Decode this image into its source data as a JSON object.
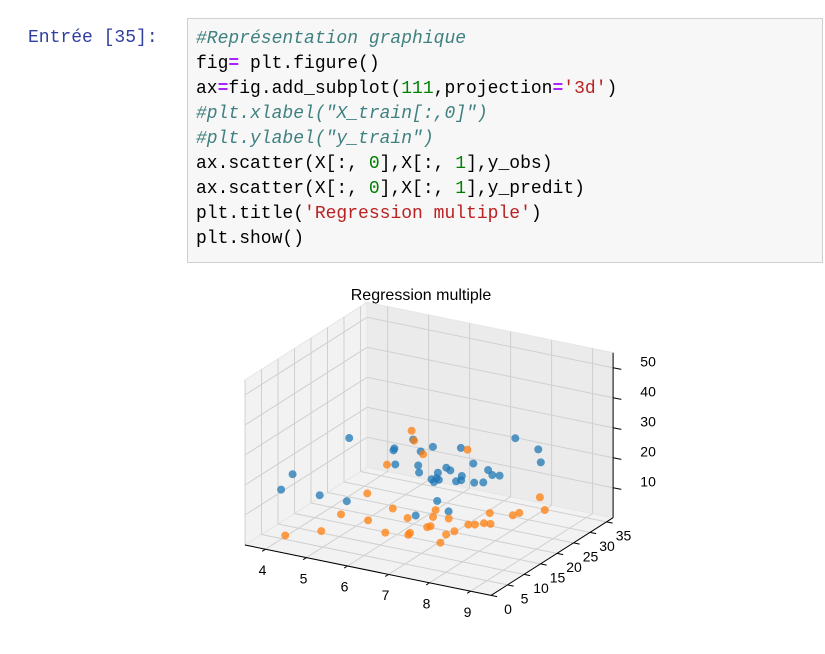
{
  "prompt": "Entrée [35]:",
  "code": {
    "lines": [
      [
        {
          "t": "#Représentation graphique",
          "k": "comment"
        }
      ],
      [
        {
          "t": "fig",
          "k": "plain"
        },
        {
          "t": "=",
          "k": "op"
        },
        {
          "t": " plt.figure()",
          "k": "plain"
        }
      ],
      [
        {
          "t": "ax",
          "k": "plain"
        },
        {
          "t": "=",
          "k": "op"
        },
        {
          "t": "fig.add_subplot(",
          "k": "plain"
        },
        {
          "t": "111",
          "k": "num"
        },
        {
          "t": ",projection",
          "k": "plain"
        },
        {
          "t": "=",
          "k": "op"
        },
        {
          "t": "'3d'",
          "k": "str"
        },
        {
          "t": ")",
          "k": "plain"
        }
      ],
      [
        {
          "t": "#plt.xlabel(\"X_train[:,0]\")",
          "k": "comment"
        }
      ],
      [
        {
          "t": "#plt.ylabel(\"y_train\")",
          "k": "comment"
        }
      ],
      [
        {
          "t": "ax.scatter(X[:, ",
          "k": "plain"
        },
        {
          "t": "0",
          "k": "num"
        },
        {
          "t": "],X[:, ",
          "k": "plain"
        },
        {
          "t": "1",
          "k": "num"
        },
        {
          "t": "],y_obs)",
          "k": "plain"
        }
      ],
      [
        {
          "t": "ax.scatter(X[:, ",
          "k": "plain"
        },
        {
          "t": "0",
          "k": "num"
        },
        {
          "t": "],X[:, ",
          "k": "plain"
        },
        {
          "t": "1",
          "k": "num"
        },
        {
          "t": "],y_predit)",
          "k": "plain"
        }
      ],
      [
        {
          "t": "plt.title(",
          "k": "plain"
        },
        {
          "t": "'Regression multiple'",
          "k": "str"
        },
        {
          "t": ")",
          "k": "plain"
        }
      ],
      [
        {
          "t": "plt.show()",
          "k": "plain"
        }
      ]
    ],
    "colors": {
      "comment": "#408080",
      "op": "#aa22ff",
      "num": "#008000",
      "str": "#ba2121",
      "plain": "#000000"
    }
  },
  "output": {
    "type": "scatter3d",
    "title": "Regression multiple",
    "xlim": [
      3.5,
      9.5
    ],
    "ylim": [
      0,
      37
    ],
    "zlim": [
      0,
      55
    ],
    "xticks": [
      4,
      5,
      6,
      7,
      8,
      9
    ],
    "yticks": [
      0,
      5,
      10,
      15,
      20,
      25,
      30,
      35
    ],
    "zticks": [
      10,
      20,
      30,
      40,
      50
    ],
    "series": [
      {
        "color": "#1f77b4",
        "points": [
          [
            4.5,
            2,
            25
          ],
          [
            5.8,
            3,
            40
          ],
          [
            6.8,
            4,
            38
          ],
          [
            7.2,
            5,
            42
          ],
          [
            7.6,
            6,
            40
          ],
          [
            6.5,
            8,
            35
          ],
          [
            7,
            9,
            30
          ],
          [
            7.4,
            10,
            28
          ],
          [
            6.9,
            11,
            33
          ],
          [
            7.8,
            12,
            36
          ],
          [
            6.2,
            12,
            26
          ],
          [
            6.7,
            13,
            24
          ],
          [
            7.1,
            14,
            22
          ],
          [
            7.3,
            15,
            25
          ],
          [
            6.9,
            15,
            20
          ],
          [
            7.5,
            16,
            23
          ],
          [
            7.7,
            17,
            27
          ],
          [
            6.6,
            18,
            18
          ],
          [
            7.2,
            18,
            19
          ],
          [
            7.9,
            19,
            24
          ],
          [
            6.8,
            20,
            21
          ],
          [
            7.4,
            21,
            17
          ],
          [
            7,
            22,
            16
          ],
          [
            8.1,
            20,
            22
          ],
          [
            7.6,
            24,
            18
          ],
          [
            6.4,
            22,
            15
          ],
          [
            7.3,
            25,
            14
          ],
          [
            8,
            26,
            30
          ],
          [
            8.4,
            28,
            26
          ],
          [
            5,
            4,
            18
          ],
          [
            4.3,
            1,
            20
          ],
          [
            5.5,
            6,
            16
          ],
          [
            7.1,
            7,
            15
          ],
          [
            7.5,
            12,
            14
          ],
          [
            6.9,
            16,
            13
          ],
          [
            8.3,
            30,
            20
          ]
        ]
      },
      {
        "color": "#ff7f0e",
        "points": [
          [
            4.4,
            1,
            5
          ],
          [
            5.2,
            2,
            8
          ],
          [
            5.6,
            3,
            14
          ],
          [
            6.1,
            5,
            12
          ],
          [
            6.6,
            4,
            10
          ],
          [
            7,
            6,
            9
          ],
          [
            7.3,
            8,
            11
          ],
          [
            6.8,
            9,
            7
          ],
          [
            7.6,
            10,
            8
          ],
          [
            7.2,
            11,
            12
          ],
          [
            6.5,
            12,
            9
          ],
          [
            7.9,
            13,
            10
          ],
          [
            6.9,
            14,
            6
          ],
          [
            7.4,
            15,
            5
          ],
          [
            8.2,
            16,
            9
          ],
          [
            7.1,
            17,
            7
          ],
          [
            6.7,
            18,
            8
          ],
          [
            7.8,
            19,
            6
          ],
          [
            7.5,
            20,
            4
          ],
          [
            8.5,
            21,
            10
          ],
          [
            6.3,
            10,
            13
          ],
          [
            7.7,
            22,
            7
          ],
          [
            8.1,
            24,
            6
          ],
          [
            8.8,
            25,
            9
          ],
          [
            7,
            7,
            43
          ],
          [
            6.9,
            9,
            38
          ],
          [
            7.2,
            8,
            35
          ],
          [
            6.4,
            7,
            30
          ],
          [
            7.8,
            14,
            34
          ],
          [
            6,
            6,
            20
          ],
          [
            8.6,
            26,
            12
          ],
          [
            7.3,
            12,
            3
          ]
        ]
      }
    ]
  }
}
